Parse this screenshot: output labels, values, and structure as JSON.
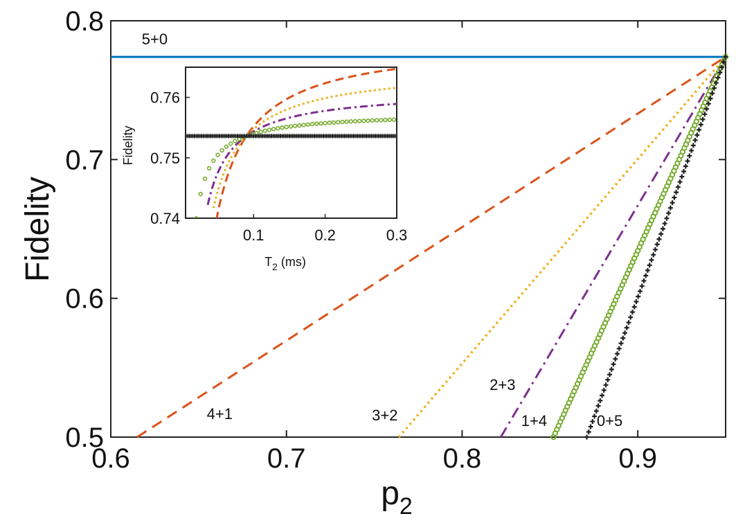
{
  "chart_data": {
    "type": "line",
    "main": {
      "xlabel": "p",
      "xlabel_sub": "2",
      "ylabel": "Fidelity",
      "xlim": [
        0.6,
        0.95
      ],
      "ylim": [
        0.5,
        0.8
      ],
      "xticks": [
        0.6,
        0.7,
        0.8,
        0.9
      ],
      "xtick_labels": [
        "0.6",
        "0.7",
        "0.8",
        "0.9"
      ],
      "yticks": [
        0.5,
        0.6,
        0.7,
        0.8
      ],
      "ytick_labels": [
        "0.5",
        "0.6",
        "0.7",
        "0.8"
      ],
      "series": [
        {
          "name": "5+0",
          "color": "#0072BD",
          "style": "solid",
          "x": [
            0.6,
            0.95
          ],
          "y": [
            0.774,
            0.774
          ],
          "label_at": [
            0.625,
            0.783
          ]
        },
        {
          "name": "4+1",
          "color": "#D95319",
          "style": "dashed",
          "x": [
            0.615,
            0.95
          ],
          "y": [
            0.5,
            0.774
          ],
          "label_at": [
            0.662,
            0.513
          ]
        },
        {
          "name": "3+2",
          "color": "#EDB120",
          "style": "dotted",
          "x": [
            0.764,
            0.95
          ],
          "y": [
            0.5,
            0.774
          ],
          "label_at": [
            0.756,
            0.512
          ]
        },
        {
          "name": "2+3",
          "color": "#7E2F8E",
          "style": "dashdot",
          "x": [
            0.822,
            0.95
          ],
          "y": [
            0.5,
            0.774
          ],
          "label_at": [
            0.823,
            0.534
          ]
        },
        {
          "name": "1+4",
          "color": "#77AC30",
          "style": "circles",
          "x": [
            0.852,
            0.95
          ],
          "y": [
            0.5,
            0.774
          ],
          "label_at": [
            0.841,
            0.508
          ]
        },
        {
          "name": "0+5",
          "color": "#222222",
          "style": "plus",
          "x": [
            0.871,
            0.95
          ],
          "y": [
            0.5,
            0.774
          ],
          "label_at": [
            0.884,
            0.508
          ]
        }
      ]
    },
    "inset": {
      "xlabel": "T",
      "xlabel_sub": "2",
      "xlabel_unit": " (ms)",
      "ylabel": "Fidelity",
      "xlim": [
        0.005,
        0.3
      ],
      "ylim": [
        0.74,
        0.765
      ],
      "xticks": [
        0.1,
        0.2,
        0.3
      ],
      "xtick_labels": [
        "0.1",
        "0.2",
        "0.3"
      ],
      "yticks": [
        0.74,
        0.75,
        0.76
      ],
      "ytick_labels": [
        "0.74",
        "0.75",
        "0.76"
      ],
      "crossing": {
        "T2": 0.09,
        "fidelity": 0.7536
      },
      "series": [
        {
          "name": "4+1",
          "color": "#D95319",
          "style": "dashed",
          "asymptote": 0.7695,
          "T2_start": 0.048
        },
        {
          "name": "3+2",
          "color": "#EDB120",
          "style": "dotted",
          "asymptote": 0.765,
          "T2_start": 0.044
        },
        {
          "name": "2+3",
          "color": "#7E2F8E",
          "style": "dashdot",
          "asymptote": 0.7612,
          "T2_start": 0.036
        },
        {
          "name": "1+4",
          "color": "#77AC30",
          "style": "circles",
          "asymptote": 0.7575,
          "T2_start": 0.02
        },
        {
          "name": "0+5",
          "color": "#222222",
          "style": "plus",
          "asymptote": 0.7536,
          "T2_start": 0.005
        }
      ]
    }
  }
}
